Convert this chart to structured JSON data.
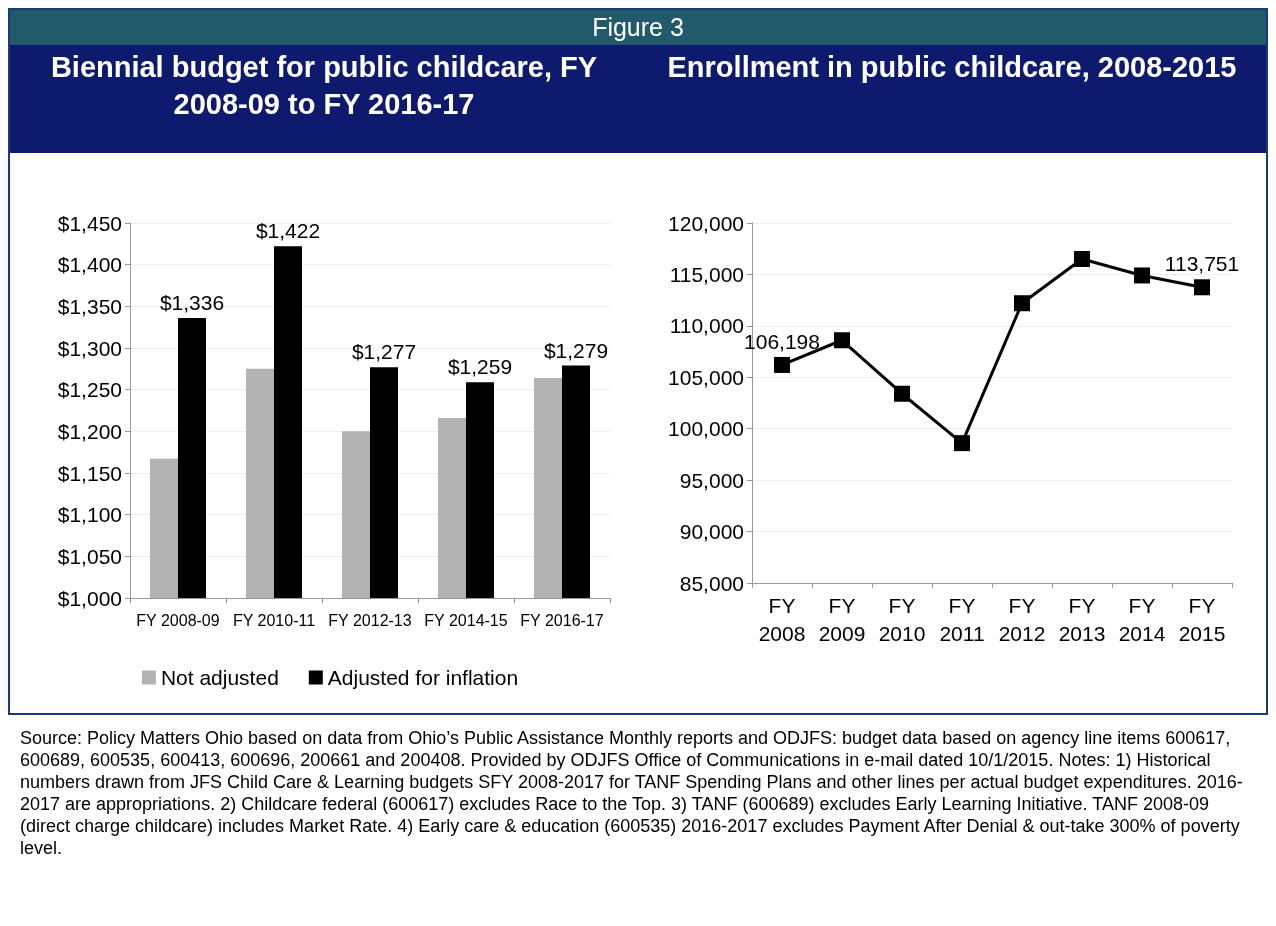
{
  "chart_data": [
    {
      "type": "bar",
      "title": "Biennial budget for public childcare, FY 2008-09 to FY 2016-17",
      "categories": [
        "FY 2008-09",
        "FY 2010-11",
        "FY 2012-13",
        "FY 2014-15",
        "FY 2016-17"
      ],
      "series": [
        {
          "name": "Not adjusted",
          "color": "#b3b3b3",
          "values": [
            1167,
            1275,
            1200,
            1216,
            1264
          ]
        },
        {
          "name": "Adjusted for inflation",
          "color": "#000000",
          "values": [
            1336,
            1422,
            1277,
            1259,
            1279
          ],
          "value_labels": [
            "$1,336",
            "$1,422",
            "$1,277",
            "$1,259",
            "$1,279"
          ]
        }
      ],
      "ylim": [
        1000,
        1450
      ],
      "yticks": [
        {
          "value": 1000,
          "label": "$1,000"
        },
        {
          "value": 1050,
          "label": "$1,050"
        },
        {
          "value": 1100,
          "label": "$1,100"
        },
        {
          "value": 1150,
          "label": "$1,150"
        },
        {
          "value": 1200,
          "label": "$1,200"
        },
        {
          "value": 1250,
          "label": "$1,250"
        },
        {
          "value": 1300,
          "label": "$1,300"
        },
        {
          "value": 1350,
          "label": "$1,350"
        },
        {
          "value": 1400,
          "label": "$1,400"
        },
        {
          "value": 1450,
          "label": "$1,450"
        }
      ],
      "grid": "y",
      "legend": "bottom",
      "annotations": [
        "Figure 3"
      ]
    },
    {
      "type": "line",
      "title": "Enrollment in public childcare, 2008-2015",
      "categories": [
        "FY 2008",
        "FY 2009",
        "FY 2010",
        "FY 2011",
        "FY 2012",
        "FY 2013",
        "FY 2014",
        "FY 2015"
      ],
      "series": [
        {
          "color": "#000000",
          "values": [
            106198,
            108600,
            103400,
            98600,
            112200,
            116500,
            114900,
            113751
          ],
          "value_labels": [
            "106,198",
            null,
            null,
            null,
            null,
            null,
            null,
            "113,751"
          ]
        }
      ],
      "ylim": [
        85000,
        120000
      ],
      "yticks": [
        {
          "value": 85000,
          "label": "85,000"
        },
        {
          "value": 90000,
          "label": "90,000"
        },
        {
          "value": 95000,
          "label": "95,000"
        },
        {
          "value": 100000,
          "label": "100,000"
        },
        {
          "value": 105000,
          "label": "105,000"
        },
        {
          "value": 110000,
          "label": "110,000"
        },
        {
          "value": 115000,
          "label": "115,000"
        },
        {
          "value": 120000,
          "label": "120,000"
        }
      ],
      "grid": "y",
      "marker": "square",
      "line_style": "solid",
      "annotations": [
        "Source: Policy Matters Ohio based on data from Ohio’s Public Assistance Monthly reports and ODJFS: budget data based on agency line items 600617, 600689, 600535, 600413, 600696, 200661 and 200408. Provided by ODJFS Office of Communications in e-mail dated 10/1/2015. Notes: 1) Historical numbers drawn from JFS Child Care & Learning budgets SFY 2008-2017 for TANF Spending Plans and other lines per actual budget expenditures. 2016-2017 are appropriations. 2) Childcare federal (600617) excludes Race to the Top. 3) TANF (600689) excludes Early Learning Initiative. TANF 2008-09 (direct charge childcare) includes Market Rate. 4) Early care & education (600535) 2016-2017 excludes Payment After Denial & out-take 300% of poverty level."
      ]
    }
  ]
}
